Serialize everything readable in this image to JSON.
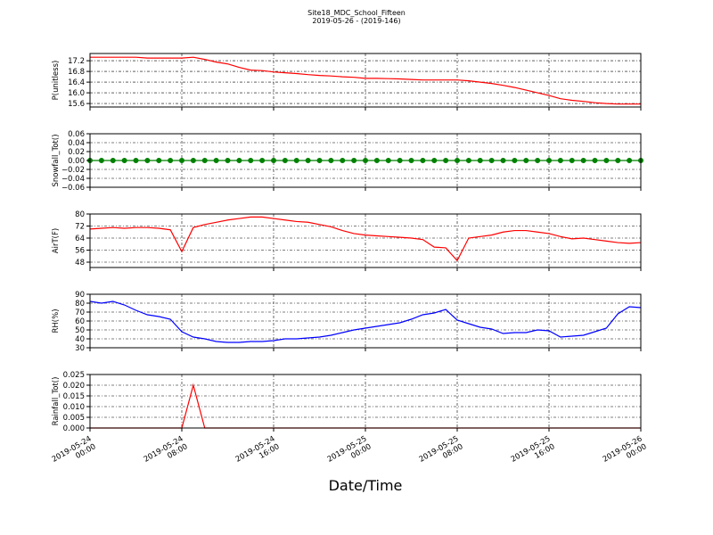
{
  "chart_data": {
    "type": "multi-panel",
    "title": "Site18_MDC_School_Fifteen",
    "subtitle": "2019-05-26 - (2019-146)",
    "xlabel": "Date/Time",
    "xlim": [
      "2019-05-24 00:00",
      "2019-05-26 00:00"
    ],
    "xticks": [
      "2019-05-24 00:00",
      "2019-05-24 08:00",
      "2019-05-24 16:00",
      "2019-05-25 00:00",
      "2019-05-25 08:00",
      "2019-05-25 16:00",
      "2019-05-26 00:00"
    ],
    "x": [
      "2019-05-24 00:00",
      "2019-05-24 01:00",
      "2019-05-24 02:00",
      "2019-05-24 03:00",
      "2019-05-24 04:00",
      "2019-05-24 05:00",
      "2019-05-24 06:00",
      "2019-05-24 07:00",
      "2019-05-24 08:00",
      "2019-05-24 09:00",
      "2019-05-24 10:00",
      "2019-05-24 11:00",
      "2019-05-24 12:00",
      "2019-05-24 13:00",
      "2019-05-24 14:00",
      "2019-05-24 15:00",
      "2019-05-24 16:00",
      "2019-05-24 17:00",
      "2019-05-24 18:00",
      "2019-05-24 19:00",
      "2019-05-24 20:00",
      "2019-05-24 21:00",
      "2019-05-24 22:00",
      "2019-05-24 23:00",
      "2019-05-25 00:00",
      "2019-05-25 01:00",
      "2019-05-25 02:00",
      "2019-05-25 03:00",
      "2019-05-25 04:00",
      "2019-05-25 05:00",
      "2019-05-25 06:00",
      "2019-05-25 07:00",
      "2019-05-25 08:00",
      "2019-05-25 09:00",
      "2019-05-25 10:00",
      "2019-05-25 11:00",
      "2019-05-25 12:00",
      "2019-05-25 13:00",
      "2019-05-25 14:00",
      "2019-05-25 15:00",
      "2019-05-25 16:00",
      "2019-05-25 17:00",
      "2019-05-25 18:00",
      "2019-05-25 19:00",
      "2019-05-25 20:00",
      "2019-05-25 21:00",
      "2019-05-25 22:00",
      "2019-05-25 23:00",
      "2019-05-26 00:00"
    ],
    "grid": true,
    "panels": [
      {
        "type": "line",
        "ylabel": "P(unitless)",
        "color": "#ff0000",
        "ylim": [
          15.47,
          17.47
        ],
        "yticks": [
          {
            "value": 15.6,
            "label": "15.6"
          },
          {
            "value": 16,
            "label": "16.0"
          },
          16.4,
          16.8,
          17.2
        ],
        "values": [
          17.33,
          17.33,
          17.33,
          17.33,
          17.33,
          17.3,
          17.3,
          17.3,
          17.3,
          17.33,
          17.25,
          17.15,
          17.08,
          16.95,
          16.85,
          16.83,
          16.78,
          16.75,
          16.72,
          16.68,
          16.65,
          16.63,
          16.6,
          16.58,
          16.54,
          16.54,
          16.53,
          16.52,
          16.5,
          16.48,
          16.48,
          16.48,
          16.48,
          16.45,
          16.4,
          16.35,
          16.28,
          16.2,
          16.1,
          16.0,
          15.9,
          15.78,
          15.72,
          15.68,
          15.63,
          15.6,
          15.58,
          15.58,
          15.58
        ]
      },
      {
        "type": "line",
        "ylabel": "Snowfall_Tot()",
        "color": "#008000",
        "marker": true,
        "ylim": [
          -0.06,
          0.06
        ],
        "yticks": [
          {
            "value": -0.06,
            "label": "−0.06"
          },
          {
            "value": -0.04,
            "label": "−0.04"
          },
          {
            "value": -0.02,
            "label": "−0.02"
          },
          {
            "value": 0,
            "label": "0.00"
          },
          {
            "value": 0.02,
            "label": "0.02"
          },
          {
            "value": 0.04,
            "label": "0.04"
          },
          {
            "value": 0.06,
            "label": "0.06"
          }
        ],
        "values": [
          0,
          0,
          0,
          0,
          0,
          0,
          0,
          0,
          0,
          0,
          0,
          0,
          0,
          0,
          0,
          0,
          0,
          0,
          0,
          0,
          0,
          0,
          0,
          0,
          0,
          0,
          0,
          0,
          0,
          0,
          0,
          0,
          0,
          0,
          0,
          0,
          0,
          0,
          0,
          0,
          0,
          0,
          0,
          0,
          0,
          0,
          0,
          0,
          0
        ]
      },
      {
        "type": "line",
        "ylabel": "AirT(F)",
        "color": "#ff0000",
        "ylim": [
          44.44,
          80
        ],
        "yticks": [
          48,
          56,
          64,
          72,
          80
        ],
        "values": [
          70,
          70.5,
          71,
          70.5,
          71,
          71,
          70.5,
          69.5,
          55,
          71,
          73,
          74.5,
          76,
          77,
          78,
          78,
          77,
          76,
          75,
          74.5,
          73,
          71.5,
          69,
          67,
          66,
          65.5,
          65,
          64.5,
          64,
          63,
          58,
          57.5,
          49,
          64,
          65,
          66,
          68,
          69,
          69,
          68,
          67,
          65,
          63.5,
          64,
          63,
          62,
          61,
          60.5,
          61
        ]
      },
      {
        "type": "line",
        "ylabel": "RH(%)",
        "color": "#0000ff",
        "ylim": [
          30,
          90
        ],
        "yticks": [
          30,
          40,
          50,
          60,
          70,
          80,
          90
        ],
        "values": [
          82,
          80,
          82,
          78,
          72,
          67,
          65,
          62,
          48,
          42,
          40,
          37,
          36,
          36,
          37,
          37,
          38,
          40,
          40,
          41,
          42,
          44,
          47,
          50,
          52,
          54,
          56,
          58,
          62,
          67,
          69,
          73,
          61,
          57,
          53,
          51,
          46,
          47,
          47,
          50,
          49,
          42,
          43,
          44,
          48,
          52,
          68,
          76,
          75
        ]
      },
      {
        "type": "line",
        "ylabel": "Rainfall_Tot()",
        "color": "#ff0000",
        "ylim": [
          0,
          0.025
        ],
        "yticks": [
          {
            "value": 0,
            "label": "0.000"
          },
          {
            "value": 0.005,
            "label": "0.005"
          },
          {
            "value": 0.01,
            "label": "0.010"
          },
          {
            "value": 0.015,
            "label": "0.015"
          },
          {
            "value": 0.02,
            "label": "0.020"
          },
          {
            "value": 0.025,
            "label": "0.025"
          }
        ],
        "values": [
          0,
          0,
          0,
          0,
          0,
          0,
          0,
          0,
          0,
          0.02,
          0,
          0,
          0,
          0,
          0,
          0,
          0,
          0,
          0,
          0,
          0,
          0,
          0,
          0,
          0,
          0,
          0,
          0,
          0,
          0,
          0,
          0,
          0,
          0,
          0,
          0,
          0,
          0,
          0,
          0,
          0,
          0,
          0,
          0,
          0,
          0,
          0,
          0,
          0
        ]
      }
    ]
  }
}
